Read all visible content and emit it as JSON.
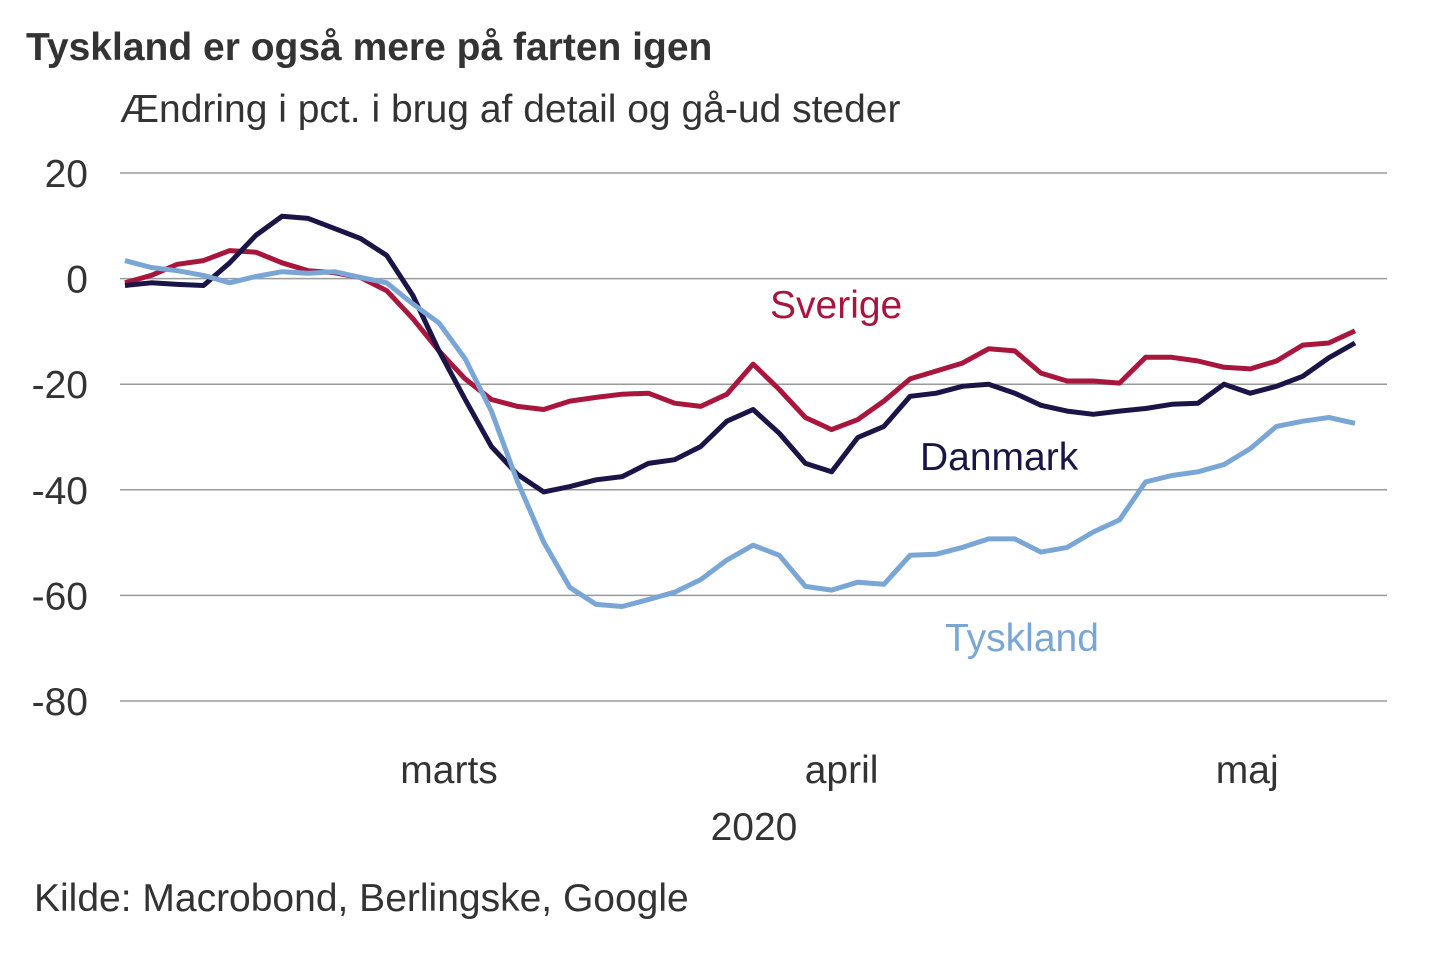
{
  "chart_data": {
    "type": "line",
    "title": "Tyskland er også mere på farten igen",
    "subtitle": "Ændring i pct. i brug af detail og gå-ud steder",
    "source": "Kilde: Macrobond, Berlingske, Google",
    "xlabel": "2020",
    "ylabel": "",
    "ylim": [
      -80,
      20
    ],
    "yticks": [
      20,
      0,
      -20,
      -40,
      -60,
      -80
    ],
    "xlim": [
      "2020-02-21",
      "2020-05-25"
    ],
    "xtick_labels": [
      {
        "label": "marts",
        "date": "2020-03-16"
      },
      {
        "label": "april",
        "date": "2020-04-15"
      },
      {
        "label": "maj",
        "date": "2020-05-16"
      }
    ],
    "grid": true,
    "legend": "inline labels",
    "x": [
      "2020-02-21",
      "2020-02-23",
      "2020-02-25",
      "2020-02-27",
      "2020-02-29",
      "2020-03-02",
      "2020-03-04",
      "2020-03-06",
      "2020-03-08",
      "2020-03-10",
      "2020-03-12",
      "2020-03-14",
      "2020-03-16",
      "2020-03-18",
      "2020-03-20",
      "2020-03-22",
      "2020-03-24",
      "2020-03-26",
      "2020-03-28",
      "2020-03-30",
      "2020-04-01",
      "2020-04-03",
      "2020-04-05",
      "2020-04-07",
      "2020-04-09",
      "2020-04-11",
      "2020-04-13",
      "2020-04-15",
      "2020-04-17",
      "2020-04-19",
      "2020-04-21",
      "2020-04-23",
      "2020-04-25",
      "2020-04-27",
      "2020-04-29",
      "2020-05-01",
      "2020-05-03",
      "2020-05-05",
      "2020-05-07",
      "2020-05-09",
      "2020-05-11",
      "2020-05-13",
      "2020-05-15",
      "2020-05-17",
      "2020-05-19",
      "2020-05-21",
      "2020-05-23",
      "2020-05-25"
    ],
    "series": [
      {
        "name": "Sverige",
        "color": "#a8163e",
        "values": [
          -0.8,
          0.6,
          2.7,
          3.4,
          5.3,
          5.0,
          3.0,
          1.5,
          1.1,
          0.2,
          -2.3,
          -7.6,
          -13.7,
          -19.0,
          -22.9,
          -24.2,
          -24.8,
          -23.2,
          -22.5,
          -21.9,
          -21.7,
          -23.6,
          -24.2,
          -21.9,
          -16.2,
          -21.0,
          -26.3,
          -28.6,
          -26.7,
          -23.2,
          -19.0,
          -17.5,
          -16.0,
          -13.3,
          -13.7,
          -17.9,
          -19.4,
          -19.4,
          -19.8,
          -14.9,
          -14.9,
          -15.6,
          -16.8,
          -17.1,
          -15.6,
          -12.6,
          -12.2,
          -9.9
        ]
      },
      {
        "name": "Danmark",
        "color": "#1b1446",
        "values": [
          -1.3,
          -0.8,
          -1.1,
          -1.3,
          3.0,
          8.2,
          11.8,
          11.4,
          9.5,
          7.6,
          4.4,
          -3.2,
          -13.7,
          -22.9,
          -31.8,
          -37.1,
          -40.4,
          -39.4,
          -38.1,
          -37.5,
          -35.0,
          -34.3,
          -31.8,
          -27.0,
          -24.8,
          -29.3,
          -35.0,
          -36.6,
          -30.1,
          -28.0,
          -22.3,
          -21.7,
          -20.4,
          -20.0,
          -21.7,
          -24.0,
          -25.1,
          -25.7,
          -25.1,
          -24.6,
          -23.8,
          -23.6,
          -20.0,
          -21.7,
          -20.4,
          -18.5,
          -15.0,
          -12.2
        ]
      },
      {
        "name": "Tyskland",
        "color": "#7aa6d6",
        "values": [
          3.4,
          2.1,
          1.5,
          0.6,
          -0.8,
          0.4,
          1.3,
          1.0,
          1.3,
          0.2,
          -0.8,
          -4.8,
          -8.4,
          -15.2,
          -25.1,
          -38.5,
          -49.9,
          -58.5,
          -61.7,
          -62.1,
          -60.8,
          -59.4,
          -57.0,
          -53.3,
          -50.5,
          -52.4,
          -58.3,
          -59.0,
          -57.5,
          -57.9,
          -52.4,
          -52.2,
          -50.9,
          -49.3,
          -49.3,
          -51.8,
          -50.9,
          -48.0,
          -45.7,
          -38.5,
          -37.3,
          -36.6,
          -35.2,
          -32.2,
          -28.0,
          -27.0,
          -26.3,
          -27.4
        ]
      }
    ]
  }
}
